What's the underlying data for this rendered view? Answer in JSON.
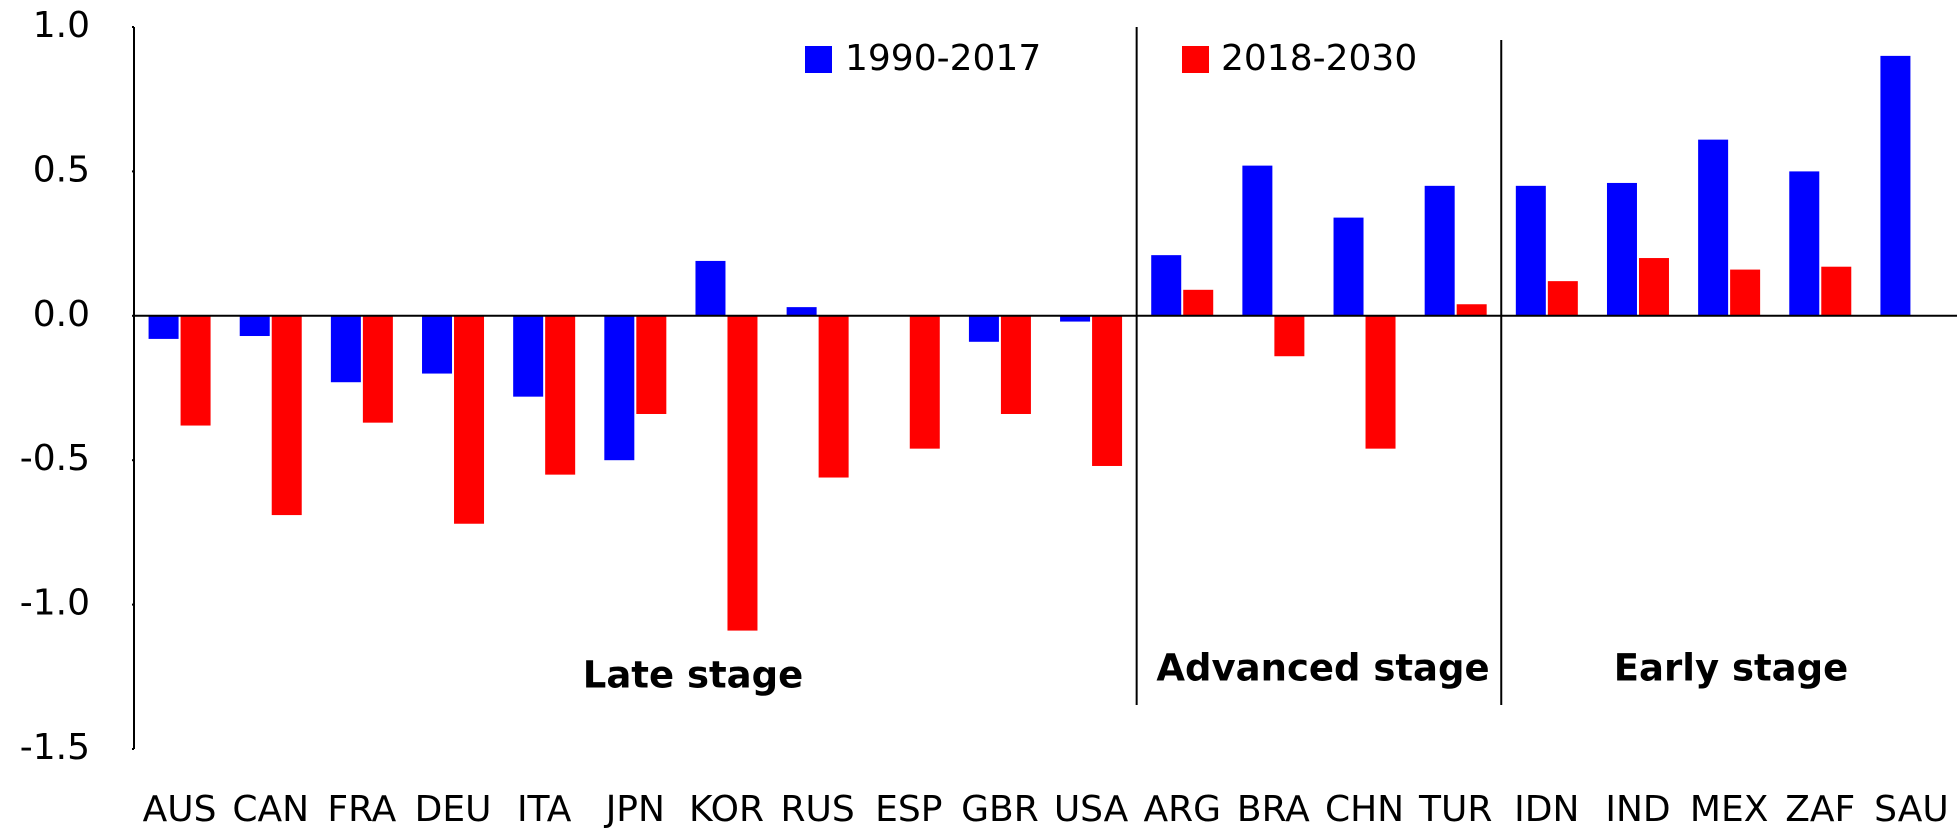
{
  "chart_data": {
    "type": "bar",
    "categories": [
      "AUS",
      "CAN",
      "FRA",
      "DEU",
      "ITA",
      "JPN",
      "KOR",
      "RUS",
      "ESP",
      "GBR",
      "USA",
      "ARG",
      "BRA",
      "CHN",
      "TUR",
      "IDN",
      "IND",
      "MEX",
      "ZAF",
      "SAU"
    ],
    "series": [
      {
        "name": "1990-2017",
        "color": "#0000ff",
        "values": [
          -0.08,
          -0.07,
          -0.23,
          -0.2,
          -0.28,
          -0.5,
          0.19,
          0.03,
          0.0,
          -0.09,
          -0.02,
          0.21,
          0.52,
          0.34,
          0.45,
          0.45,
          0.46,
          0.61,
          0.5,
          0.9
        ]
      },
      {
        "name": "2018-2030",
        "color": "#ff0000",
        "values": [
          -0.38,
          -0.69,
          -0.37,
          -0.72,
          -0.55,
          -0.34,
          -1.09,
          -0.56,
          -0.46,
          -0.34,
          -0.52,
          0.09,
          -0.14,
          -0.46,
          0.04,
          0.12,
          0.2,
          0.16,
          0.17,
          null
        ]
      }
    ],
    "ylim": [
      -1.5,
      1.0
    ],
    "yticks": [
      {
        "value": 1.0,
        "label": "1.0"
      },
      0.5,
      {
        "value": 0.0,
        "label": "0.0"
      },
      -0.5,
      {
        "value": -1.0,
        "label": "-1.0"
      },
      -1.5
    ],
    "annotations": [
      "Late stage",
      "Advanced stage",
      "Early stage"
    ]
  }
}
